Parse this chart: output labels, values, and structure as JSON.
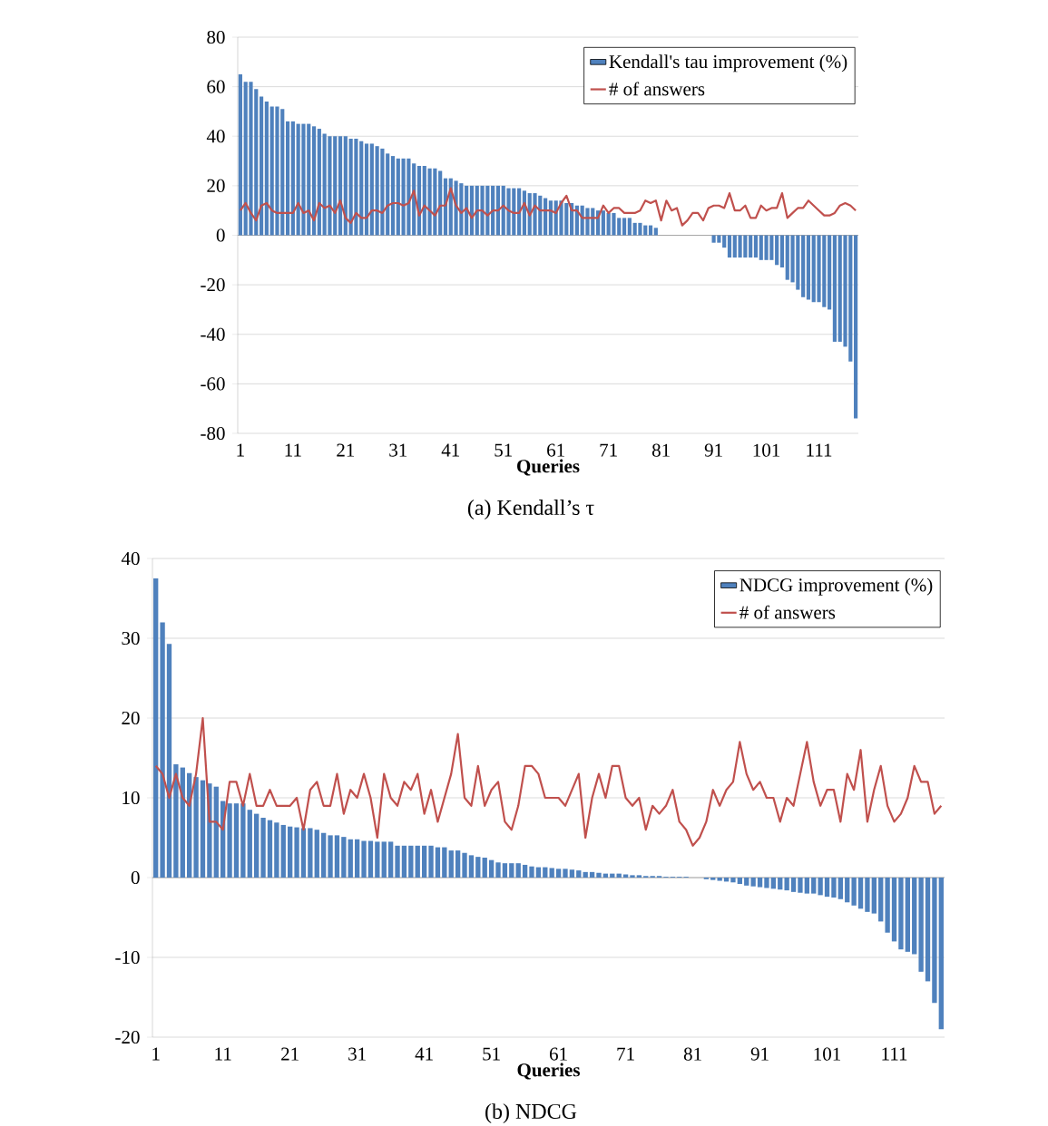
{
  "chart_data": [
    {
      "type": "bar",
      "xlabel": "Queries",
      "annotations": [
        "(a)  Kendall’s τ"
      ],
      "categories": [
        "1",
        null,
        null,
        null,
        null,
        null,
        null,
        null,
        null,
        null,
        "11",
        null,
        null,
        null,
        null,
        null,
        null,
        null,
        null,
        null,
        "21",
        null,
        null,
        null,
        null,
        null,
        null,
        null,
        null,
        null,
        "31",
        null,
        null,
        null,
        null,
        null,
        null,
        null,
        null,
        null,
        "41",
        null,
        null,
        null,
        null,
        null,
        null,
        null,
        null,
        null,
        "51",
        null,
        null,
        null,
        null,
        null,
        null,
        null,
        null,
        null,
        "61",
        null,
        null,
        null,
        null,
        null,
        null,
        null,
        null,
        null,
        "71",
        null,
        null,
        null,
        null,
        null,
        null,
        null,
        null,
        null,
        "81",
        null,
        null,
        null,
        null,
        null,
        null,
        null,
        null,
        null,
        "91",
        null,
        null,
        null,
        null,
        null,
        null,
        null,
        null,
        null,
        "101",
        null,
        null,
        null,
        null,
        null,
        null,
        null,
        null,
        null,
        "111",
        null,
        null,
        null,
        null,
        null,
        null,
        null
      ],
      "series": [
        {
          "name": "Kendall's tau improvement (%)",
          "type": "bar",
          "color": "#4f81bd",
          "values": [
            65,
            62,
            62,
            59,
            56,
            54,
            52,
            52,
            51,
            46,
            46,
            45,
            45,
            45,
            44,
            43,
            41,
            40,
            40,
            40,
            40,
            39,
            39,
            38,
            37,
            37,
            36,
            35,
            33,
            32,
            31,
            31,
            31,
            29,
            28,
            28,
            27,
            27,
            26,
            23,
            23,
            22,
            21,
            20,
            20,
            20,
            20,
            20,
            20,
            20,
            20,
            19,
            19,
            19,
            18,
            17,
            17,
            16,
            15,
            14,
            14,
            14,
            13,
            13,
            12,
            12,
            11,
            11,
            10,
            10,
            9,
            9,
            7,
            7,
            7,
            5,
            5,
            4,
            4,
            3,
            0,
            0,
            0,
            0,
            0,
            0,
            0,
            0,
            0,
            0,
            -3,
            -3,
            -5,
            -9,
            -9,
            -9,
            -9,
            -9,
            -9,
            -10,
            -10,
            -10,
            -12,
            -13,
            -18,
            -19,
            -22,
            -25,
            -26,
            -27,
            -27,
            -29,
            -30,
            -43,
            -43,
            -45,
            -51,
            -74
          ]
        },
        {
          "name": "# of answers",
          "type": "line",
          "color": "#c0504d",
          "values": [
            10,
            13,
            9,
            6,
            12,
            13,
            10,
            9,
            9,
            9,
            9,
            13,
            9,
            10,
            6,
            13,
            11,
            12,
            9,
            14,
            7,
            5,
            9,
            7,
            7,
            10,
            10,
            9,
            12,
            13,
            13,
            12,
            13,
            18,
            8,
            12,
            10,
            8,
            12,
            12,
            19,
            12,
            9,
            11,
            7,
            10,
            10,
            8,
            10,
            10,
            12,
            10,
            9,
            9,
            13,
            8,
            12,
            10,
            10,
            10,
            9,
            13,
            16,
            10,
            10,
            7,
            7,
            7,
            7,
            12,
            9,
            11,
            11,
            9,
            9,
            9,
            10,
            14,
            13,
            14,
            6,
            14,
            10,
            11,
            4,
            6,
            9,
            9,
            6,
            11,
            12,
            12,
            11,
            17,
            10,
            10,
            12,
            7,
            7,
            12,
            10,
            11,
            11,
            17,
            7,
            9,
            11,
            11,
            14,
            12,
            10,
            8,
            8,
            9,
            12,
            13,
            12,
            10
          ]
        }
      ],
      "ylim": [
        -80,
        80
      ],
      "yticks": [
        -80,
        -60,
        -40,
        -20,
        0,
        20,
        40,
        60,
        80
      ],
      "grid": "y",
      "legend": "top right"
    },
    {
      "type": "bar",
      "xlabel": "Queries",
      "annotations": [
        "(b)  NDCG"
      ],
      "categories": [
        "1",
        null,
        null,
        null,
        null,
        null,
        null,
        null,
        null,
        null,
        "11",
        null,
        null,
        null,
        null,
        null,
        null,
        null,
        null,
        null,
        "21",
        null,
        null,
        null,
        null,
        null,
        null,
        null,
        null,
        null,
        "31",
        null,
        null,
        null,
        null,
        null,
        null,
        null,
        null,
        null,
        "41",
        null,
        null,
        null,
        null,
        null,
        null,
        null,
        null,
        null,
        "51",
        null,
        null,
        null,
        null,
        null,
        null,
        null,
        null,
        null,
        "61",
        null,
        null,
        null,
        null,
        null,
        null,
        null,
        null,
        null,
        "71",
        null,
        null,
        null,
        null,
        null,
        null,
        null,
        null,
        null,
        "81",
        null,
        null,
        null,
        null,
        null,
        null,
        null,
        null,
        null,
        "91",
        null,
        null,
        null,
        null,
        null,
        null,
        null,
        null,
        null,
        "101",
        null,
        null,
        null,
        null,
        null,
        null,
        null,
        null,
        null,
        "111",
        null,
        null,
        null,
        null,
        null,
        null,
        null
      ],
      "series": [
        {
          "name": "NDCG improvement (%)",
          "type": "bar",
          "color": "#4f81bd",
          "values": [
            37.5,
            32,
            29.3,
            14.2,
            13.8,
            13.1,
            12.6,
            12.2,
            11.8,
            11.4,
            9.6,
            9.3,
            9.3,
            9.3,
            8.5,
            8.0,
            7.5,
            7.2,
            6.9,
            6.6,
            6.4,
            6.3,
            6.2,
            6.2,
            6.0,
            5.6,
            5.3,
            5.3,
            5.1,
            4.8,
            4.8,
            4.6,
            4.6,
            4.5,
            4.5,
            4.5,
            4.0,
            4.0,
            4.0,
            4.0,
            4.0,
            4.0,
            3.8,
            3.8,
            3.4,
            3.4,
            3.1,
            2.8,
            2.6,
            2.5,
            2.2,
            1.9,
            1.8,
            1.8,
            1.8,
            1.6,
            1.4,
            1.3,
            1.3,
            1.2,
            1.1,
            1.1,
            1.0,
            0.9,
            0.7,
            0.7,
            0.6,
            0.5,
            0.5,
            0.5,
            0.4,
            0.3,
            0.3,
            0.2,
            0.2,
            0.2,
            0.1,
            0.1,
            0.1,
            0.1,
            0,
            0,
            -0.2,
            -0.3,
            -0.4,
            -0.5,
            -0.6,
            -0.8,
            -1.0,
            -1.1,
            -1.2,
            -1.3,
            -1.4,
            -1.5,
            -1.6,
            -1.8,
            -1.9,
            -2.0,
            -2.0,
            -2.2,
            -2.4,
            -2.5,
            -2.7,
            -3.1,
            -3.5,
            -3.9,
            -4.3,
            -4.5,
            -5.5,
            -6.9,
            -8.0,
            -9.0,
            -9.3,
            -9.6,
            -11.8,
            -13.0,
            -15.7,
            -19.0
          ]
        },
        {
          "name": "# of answers",
          "type": "line",
          "color": "#c0504d",
          "values": [
            14,
            13,
            10,
            13,
            10,
            9,
            13,
            20,
            7,
            7,
            6,
            12,
            12,
            9,
            13,
            9,
            9,
            11,
            9,
            9,
            9,
            10,
            6,
            11,
            12,
            9,
            9,
            13,
            8,
            11,
            10,
            13,
            10,
            5,
            13,
            10,
            9,
            12,
            11,
            13,
            8,
            11,
            7,
            10,
            13,
            18,
            10,
            9,
            14,
            9,
            11,
            12,
            7,
            6,
            9,
            14,
            14,
            13,
            10,
            10,
            10,
            9,
            11,
            13,
            5,
            10,
            13,
            10,
            14,
            14,
            10,
            9,
            10,
            6,
            9,
            8,
            9,
            11,
            7,
            6,
            4,
            5,
            7,
            11,
            9,
            11,
            12,
            17,
            13,
            11,
            12,
            10,
            10,
            7,
            10,
            9,
            13,
            17,
            12,
            9,
            11,
            11,
            7,
            13,
            11,
            16,
            7,
            11,
            14,
            9,
            7,
            8,
            10,
            14,
            12,
            12,
            8,
            9
          ]
        }
      ],
      "ylim": [
        -20,
        40
      ],
      "yticks": [
        -20,
        -10,
        0,
        10,
        20,
        30,
        40
      ],
      "grid": "y",
      "legend": "top right"
    }
  ]
}
